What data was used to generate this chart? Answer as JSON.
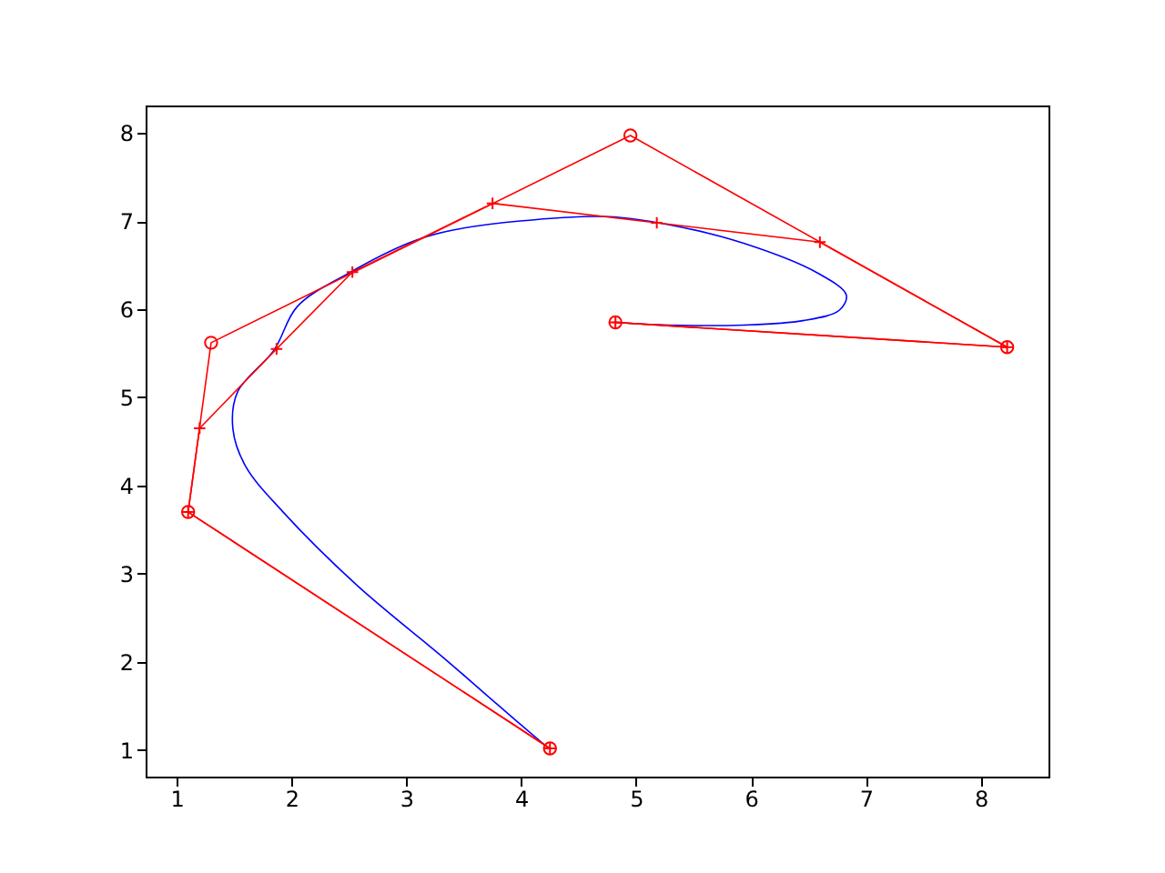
{
  "chart_data": {
    "type": "line",
    "xlim": [
      0.73,
      8.59
    ],
    "ylim": [
      0.7,
      8.31
    ],
    "xticks": [
      1,
      2,
      3,
      4,
      5,
      6,
      7,
      8
    ],
    "yticks": [
      1,
      2,
      3,
      4,
      5,
      6,
      7,
      8
    ],
    "grid": false,
    "series": [
      {
        "color": "#0000ff",
        "marker": "none",
        "x": [
          4.23,
          3.79,
          3.34,
          2.57,
          1.92,
          1.6,
          1.49,
          1.53,
          1.85,
          2.05,
          2.5,
          3.02,
          3.34,
          3.99,
          4.76,
          5.28,
          5.93,
          6.58,
          6.83,
          6.77,
          6.45,
          5.93,
          5.28,
          4.8
        ],
        "values": [
          1.03,
          1.52,
          2.03,
          2.87,
          3.71,
          4.22,
          4.64,
          5.06,
          5.54,
          6.03,
          6.41,
          6.75,
          6.88,
          7.0,
          7.05,
          6.96,
          6.75,
          6.41,
          6.16,
          5.99,
          5.87,
          5.82,
          5.82,
          5.85
        ]
      },
      {
        "color": "#ff0000",
        "marker": "circle",
        "x": [
          4.25,
          1.1,
          1.3,
          4.95,
          8.23,
          4.82
        ],
        "values": [
          1.02,
          3.7,
          5.62,
          7.97,
          5.57,
          5.85
        ]
      },
      {
        "color": "#ff0000",
        "marker": "cross",
        "x": [
          4.25,
          1.1,
          1.2,
          1.87,
          2.53,
          3.75,
          5.18,
          6.6,
          8.23,
          4.82
        ],
        "values": [
          1.02,
          3.7,
          4.65,
          5.55,
          6.42,
          7.2,
          6.98,
          6.76,
          5.57,
          5.85
        ]
      }
    ]
  }
}
